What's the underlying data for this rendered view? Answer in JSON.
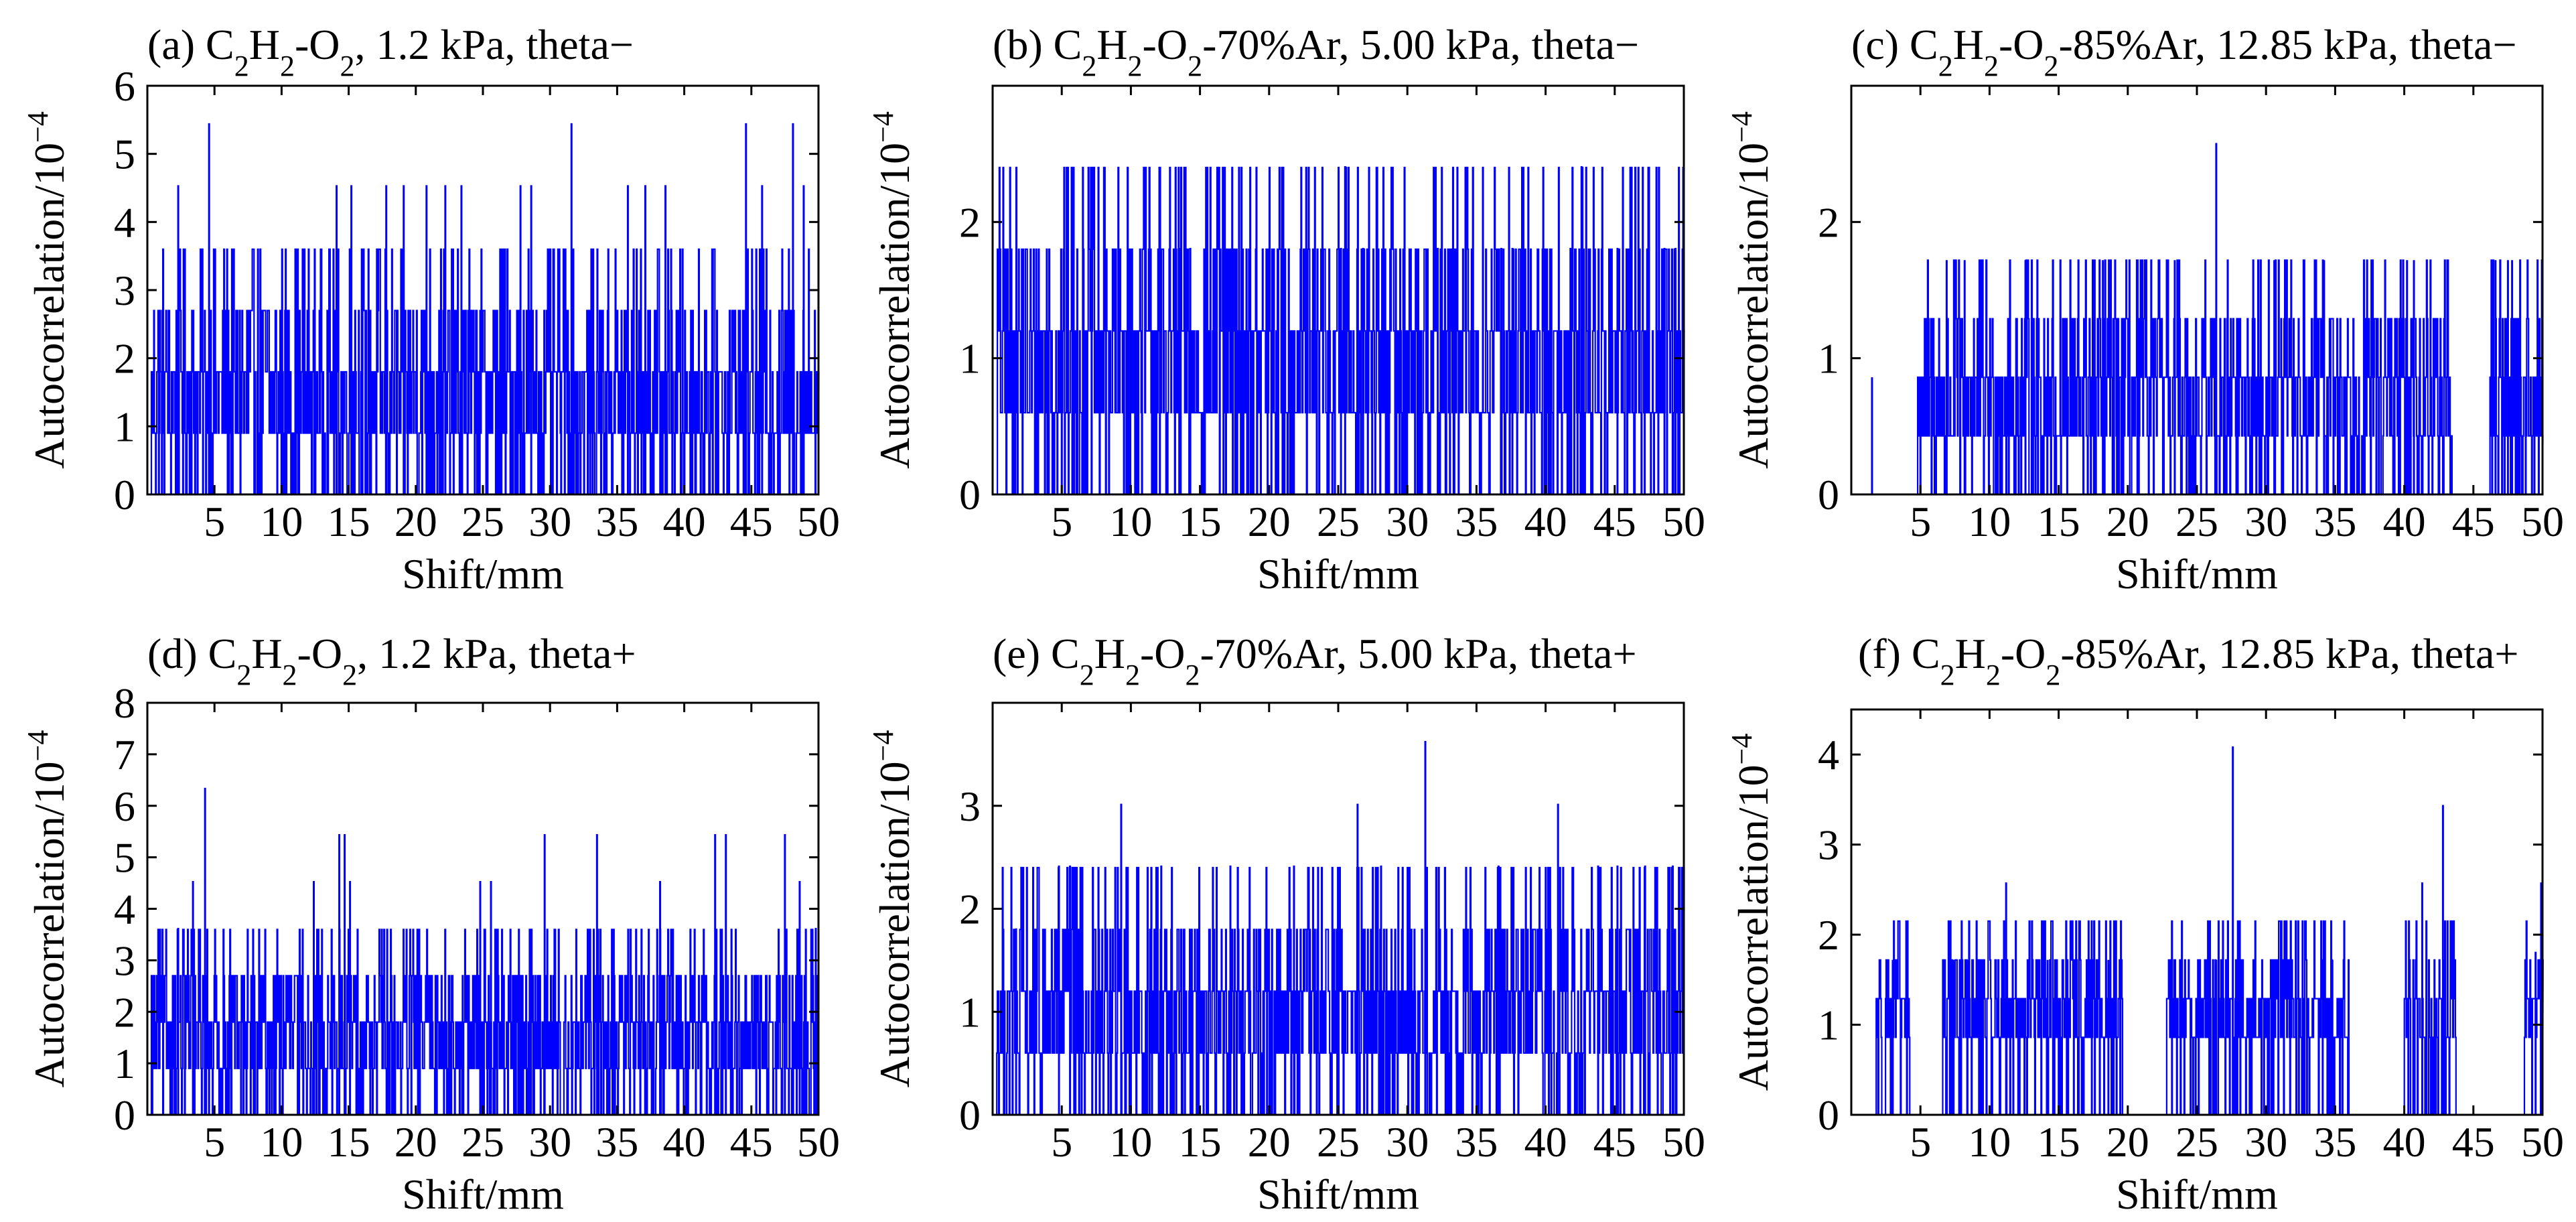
{
  "figure": {
    "panels": [
      {
        "id": "a",
        "prefix": "(a) ",
        "ar_suffix": "",
        "pressure_text": ", 1.2 kPa, theta−",
        "xlabel": "Shift/mm",
        "ylabel": "Autocorrelation/10",
        "ylabel_exp": "−4"
      },
      {
        "id": "b",
        "prefix": "(b) ",
        "ar_suffix": "-70%Ar",
        "pressure_text": ", 5.00 kPa, theta−",
        "xlabel": "Shift/mm",
        "ylabel": "Autocorrelation/10",
        "ylabel_exp": "−4"
      },
      {
        "id": "c",
        "prefix": "(c) ",
        "ar_suffix": "-85%Ar",
        "pressure_text": ", 12.85 kPa, theta−",
        "xlabel": "Shift/mm",
        "ylabel": "Autocorrelation/10",
        "ylabel_exp": "−4"
      },
      {
        "id": "d",
        "prefix": "(d) ",
        "ar_suffix": "",
        "pressure_text": ", 1.2 kPa, theta+",
        "xlabel": "Shift/mm",
        "ylabel": "Autocorrelation/10",
        "ylabel_exp": "−4"
      },
      {
        "id": "e",
        "prefix": "(e) ",
        "ar_suffix": "-70%Ar",
        "pressure_text": ", 5.00 kPa, theta+",
        "xlabel": "Shift/mm",
        "ylabel": "Autocorrelation/10",
        "ylabel_exp": "−4"
      },
      {
        "id": "f",
        "prefix": "(f) ",
        "ar_suffix": "-85%Ar",
        "pressure_text": ", 12.85 kPa, theta+",
        "xlabel": "Shift/mm",
        "ylabel": "Autocorrelation/10",
        "ylabel_exp": "−4"
      }
    ],
    "formula": {
      "c": "C",
      "c_sub": "2",
      "h": "H",
      "h_sub": "2",
      "o": "-O",
      "o_sub": "2"
    }
  },
  "colors": {
    "line": "#0000ff",
    "axis": "#000000",
    "background": "#ffffff"
  },
  "chart_data": [
    {
      "type": "line",
      "panel": "a",
      "title": "(a) C2H2-O2, 1.2 kPa, theta−",
      "xlabel": "Shift/mm",
      "ylabel": "Autocorrelation/10^−4",
      "xlim": [
        0,
        50
      ],
      "ylim": [
        0,
        6
      ],
      "xticks": [
        5,
        10,
        15,
        20,
        25,
        30,
        35,
        40,
        45,
        50
      ],
      "yticks": [
        0,
        1,
        2,
        3,
        4,
        5,
        6
      ],
      "level_step": 0.9,
      "baseline_level": 1,
      "x_start": 0.3,
      "x_end": 50,
      "peaks": [
        [
          2.3,
          4.54
        ],
        [
          4.6,
          5.45
        ],
        [
          14.1,
          4.54
        ],
        [
          15.2,
          4.54
        ],
        [
          17.8,
          4.54
        ],
        [
          19.1,
          4.54
        ],
        [
          20.8,
          4.54
        ],
        [
          22.2,
          4.54
        ],
        [
          23.4,
          4.54
        ],
        [
          27.8,
          4.54
        ],
        [
          28.6,
          4.54
        ],
        [
          31.6,
          5.45
        ],
        [
          35.8,
          4.54
        ],
        [
          37.1,
          4.54
        ],
        [
          38.6,
          4.54
        ],
        [
          44.6,
          5.45
        ],
        [
          45.8,
          4.54
        ],
        [
          48.1,
          5.45
        ],
        [
          48.9,
          4.54
        ]
      ],
      "grid": false,
      "legend": "none"
    },
    {
      "type": "line",
      "panel": "b",
      "title": "(b) C2H2-O2-70%Ar, 5.00 kPa, theta−",
      "xlabel": "Shift/mm",
      "ylabel": "Autocorrelation/10^−4",
      "xlim": [
        0,
        50
      ],
      "ylim": [
        0,
        3
      ],
      "xticks": [
        5,
        10,
        15,
        20,
        25,
        30,
        35,
        40,
        45,
        50
      ],
      "yticks": [
        0,
        1,
        2
      ],
      "level_step": 0.6,
      "baseline_level": 1,
      "x_start": 0.3,
      "x_end": 50,
      "peaks": [
        [
          5.8,
          1.81
        ],
        [
          12.1,
          1.81
        ],
        [
          13.6,
          1.81
        ],
        [
          14.3,
          1.81
        ],
        [
          25.5,
          2.41
        ],
        [
          25.2,
          1.81
        ],
        [
          26.8,
          1.81
        ],
        [
          32.2,
          1.81
        ],
        [
          36.8,
          1.81
        ],
        [
          37.6,
          1.81
        ],
        [
          41.8,
          1.81
        ],
        [
          42.6,
          2.41
        ],
        [
          45.2,
          1.81
        ],
        [
          48.6,
          1.81
        ],
        [
          49.4,
          1.81
        ]
      ],
      "grid": false,
      "legend": "none"
    },
    {
      "type": "line",
      "panel": "c",
      "title": "(c) C2H2-O2-85%Ar, 12.85 kPa, theta−",
      "xlabel": "Shift/mm",
      "ylabel": "Autocorrelation/10^−4",
      "xlim": [
        0,
        50
      ],
      "ylim": [
        0,
        3
      ],
      "xticks": [
        5,
        10,
        15,
        20,
        25,
        30,
        35,
        40,
        45,
        50
      ],
      "yticks": [
        0,
        1,
        2
      ],
      "level_step": 0.43,
      "baseline_level": 1,
      "x_start": 4.8,
      "x_end": 50,
      "isolated": [
        [
          1.5,
          0.86
        ]
      ],
      "gaps": [
        [
          43.5,
          46.2
        ]
      ],
      "peaks": [
        [
          6.9,
          1.72
        ],
        [
          8.2,
          1.72
        ],
        [
          12.6,
          1.72
        ],
        [
          18.2,
          1.72
        ],
        [
          20.7,
          1.72
        ],
        [
          23.4,
          1.72
        ],
        [
          26.4,
          2.58
        ],
        [
          30.6,
          1.72
        ],
        [
          34.2,
          1.72
        ],
        [
          40.2,
          1.72
        ],
        [
          40.7,
          1.72
        ],
        [
          46.6,
          1.72
        ],
        [
          47.5,
          1.72
        ],
        [
          47.8,
          1.72
        ]
      ],
      "grid": false,
      "legend": "none"
    },
    {
      "type": "line",
      "panel": "d",
      "title": "(d) C2H2-O2, 1.2 kPa, theta+",
      "xlabel": "Shift/mm",
      "ylabel": "Autocorrelation/10^−4",
      "xlim": [
        0,
        50
      ],
      "ylim": [
        0,
        8
      ],
      "xticks": [
        5,
        10,
        15,
        20,
        25,
        30,
        35,
        40,
        45,
        50
      ],
      "yticks": [
        0,
        1,
        2,
        3,
        4,
        5,
        6,
        7,
        8
      ],
      "level_step": 0.9,
      "baseline_level": 1,
      "x_start": 0.3,
      "x_end": 50,
      "peaks": [
        [
          2.3,
          3.63
        ],
        [
          3.4,
          4.54
        ],
        [
          4.3,
          6.35
        ],
        [
          12.4,
          4.54
        ],
        [
          14.3,
          5.45
        ],
        [
          14.7,
          5.45
        ],
        [
          15.1,
          4.54
        ],
        [
          24.8,
          4.54
        ],
        [
          25.6,
          4.54
        ],
        [
          29.6,
          5.45
        ],
        [
          33.5,
          5.45
        ],
        [
          38.2,
          4.54
        ],
        [
          42.3,
          5.45
        ],
        [
          43.1,
          5.45
        ],
        [
          47.5,
          5.45
        ],
        [
          48.6,
          4.54
        ],
        [
          49.8,
          3.63
        ]
      ],
      "grid": false,
      "legend": "none"
    },
    {
      "type": "line",
      "panel": "e",
      "title": "(e) C2H2-O2-70%Ar, 5.00 kPa, theta+",
      "xlabel": "Shift/mm",
      "ylabel": "Autocorrelation/10^−4",
      "xlim": [
        0,
        50
      ],
      "ylim": [
        0,
        4
      ],
      "xticks": [
        5,
        10,
        15,
        20,
        25,
        30,
        35,
        40,
        45,
        50
      ],
      "yticks": [
        0,
        1,
        2,
        3
      ],
      "level_step": 0.6,
      "baseline_level": 1,
      "x_start": 0.3,
      "x_end": 50,
      "peaks": [
        [
          1.7,
          1.81
        ],
        [
          4.8,
          2.42
        ],
        [
          5.6,
          2.42
        ],
        [
          9.3,
          3.02
        ],
        [
          12.2,
          2.42
        ],
        [
          17.2,
          2.42
        ],
        [
          21.8,
          2.42
        ],
        [
          26.4,
          3.02
        ],
        [
          28.1,
          2.42
        ],
        [
          31.3,
          3.63
        ],
        [
          36.6,
          2.42
        ],
        [
          40.9,
          3.02
        ],
        [
          43.8,
          2.42
        ],
        [
          45.2,
          2.42
        ],
        [
          47.2,
          2.42
        ],
        [
          49.2,
          2.42
        ]
      ],
      "grid": false,
      "legend": "none"
    },
    {
      "type": "line",
      "panel": "f",
      "title": "(f) C2H2-O2-85%Ar, 12.85 kPa, theta+",
      "xlabel": "Shift/mm",
      "ylabel": "Autocorrelation/10^−4",
      "xlim": [
        0,
        50
      ],
      "ylim": [
        0,
        4.5
      ],
      "xticks": [
        5,
        10,
        15,
        20,
        25,
        30,
        35,
        40,
        45,
        50
      ],
      "yticks": [
        0,
        1,
        2,
        3,
        4
      ],
      "level_step": 0.43,
      "baseline_level": 2,
      "x_start": 1.8,
      "x_end": 50,
      "gaps": [
        [
          4.2,
          6.6
        ],
        [
          19.6,
          22.8
        ],
        [
          36.0,
          40.0
        ],
        [
          43.7,
          48.6
        ]
      ],
      "peaks": [
        [
          3.0,
          1.72
        ],
        [
          7.4,
          1.72
        ],
        [
          7.9,
          1.72
        ],
        [
          8.4,
          1.72
        ],
        [
          11.2,
          2.58
        ],
        [
          14.2,
          1.72
        ],
        [
          16.1,
          1.72
        ],
        [
          17.4,
          1.72
        ],
        [
          18.6,
          1.72
        ],
        [
          23.2,
          1.72
        ],
        [
          25.9,
          1.72
        ],
        [
          26.4,
          1.72
        ],
        [
          27.6,
          4.09
        ],
        [
          34.1,
          1.72
        ],
        [
          34.8,
          1.72
        ],
        [
          41.3,
          2.58
        ],
        [
          42.8,
          3.44
        ],
        [
          49.5,
          1.81
        ],
        [
          49.9,
          2.58
        ]
      ],
      "grid": false,
      "legend": "none"
    }
  ]
}
